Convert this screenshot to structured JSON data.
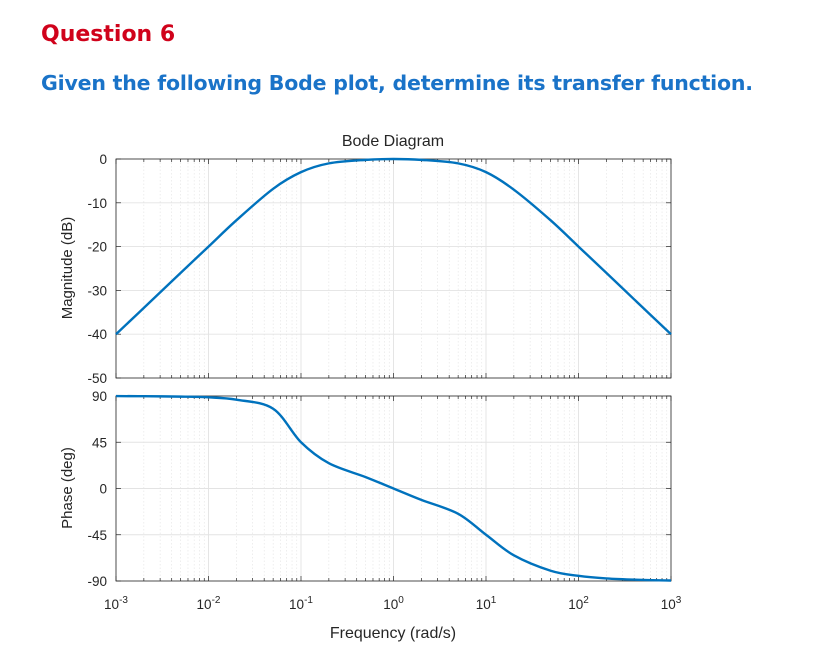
{
  "question": {
    "title": "Question 6",
    "text": "Given the following Bode plot, determine its transfer function."
  },
  "colors": {
    "title": "#d0021b",
    "question_text": "#1a73c8",
    "curve": "#0072bd",
    "grid": "#e3e3e3",
    "axes": "#262626"
  },
  "chart_data": {
    "type": "line",
    "title": "Bode Diagram",
    "xlabel": "Frequency  (rad/s)",
    "xscale": "log",
    "xlim": [
      0.001,
      1000
    ],
    "x_ticks": [
      {
        "base": "10",
        "exp": "-3"
      },
      {
        "base": "10",
        "exp": "-2"
      },
      {
        "base": "10",
        "exp": "-1"
      },
      {
        "base": "10",
        "exp": "0"
      },
      {
        "base": "10",
        "exp": "1"
      },
      {
        "base": "10",
        "exp": "2"
      },
      {
        "base": "10",
        "exp": "3"
      }
    ],
    "grid": true,
    "magnitude": {
      "ylabel": "Magnitude (dB)",
      "ylim": [
        -50,
        0
      ],
      "y_ticks": [
        0,
        -10,
        -20,
        -30,
        -40,
        -50
      ],
      "x": [
        0.001,
        0.002,
        0.005,
        0.01,
        0.02,
        0.05,
        0.1,
        0.2,
        0.5,
        1,
        2,
        5,
        10,
        20,
        50,
        100,
        200,
        500,
        1000
      ],
      "y": [
        -40.0,
        -34.0,
        -26.0,
        -20.0,
        -14.0,
        -6.8,
        -3.0,
        -1.0,
        -0.2,
        0.0,
        -0.2,
        -1.0,
        -3.0,
        -7.0,
        -14.0,
        -20.0,
        -26.0,
        -34.0,
        -40.0
      ]
    },
    "phase": {
      "ylabel": "Phase (deg)",
      "ylim": [
        -90,
        90
      ],
      "y_ticks": [
        90,
        45,
        0,
        -45,
        -90
      ],
      "x": [
        0.001,
        0.002,
        0.005,
        0.01,
        0.02,
        0.05,
        0.1,
        0.2,
        0.5,
        1,
        2,
        5,
        10,
        20,
        50,
        100,
        200,
        500,
        1000
      ],
      "y": [
        89.9,
        89.8,
        89.4,
        88.7,
        86.4,
        77.6,
        45.0,
        24.6,
        11.1,
        0.0,
        -11.1,
        -24.6,
        -45.0,
        -65.0,
        -80.0,
        -85.0,
        -87.5,
        -89.0,
        -89.5
      ]
    }
  }
}
